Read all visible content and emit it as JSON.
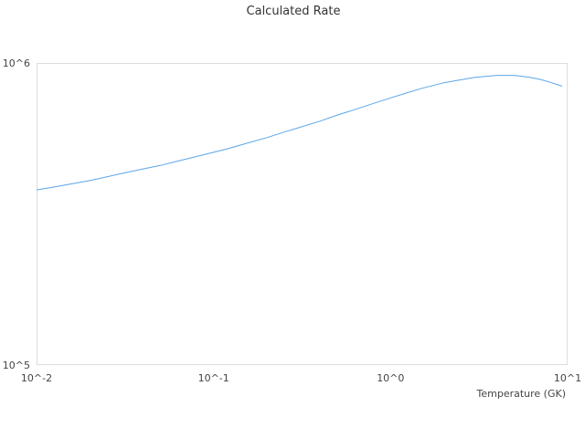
{
  "chart_data": {
    "type": "line",
    "title": "Calculated Rate",
    "xlabel": "Temperature (GK)",
    "ylabel": "",
    "xscale": "log",
    "yscale": "log",
    "xlim": [
      0.01,
      10
    ],
    "ylim": [
      100000,
      1000000
    ],
    "xticks": [
      {
        "value": 0.01,
        "label": "10^-2"
      },
      {
        "value": 0.1,
        "label": "10^-1"
      },
      {
        "value": 1,
        "label": "10^0"
      },
      {
        "value": 10,
        "label": "10^1"
      }
    ],
    "yticks": [
      {
        "value": 100000,
        "label": "10^5"
      },
      {
        "value": 1000000,
        "label": "10^6"
      }
    ],
    "grid": false,
    "series": [
      {
        "color": "#5aa5e8",
        "points": [
          {
            "x": 0.01,
            "y": 380000
          },
          {
            "x": 0.0119,
            "y": 386000
          },
          {
            "x": 0.015,
            "y": 396000
          },
          {
            "x": 0.02,
            "y": 408000
          },
          {
            "x": 0.025,
            "y": 420000
          },
          {
            "x": 0.03,
            "y": 430000
          },
          {
            "x": 0.04,
            "y": 446000
          },
          {
            "x": 0.05,
            "y": 458000
          },
          {
            "x": 0.06,
            "y": 470000
          },
          {
            "x": 0.08,
            "y": 490000
          },
          {
            "x": 0.1,
            "y": 506000
          },
          {
            "x": 0.12,
            "y": 520000
          },
          {
            "x": 0.15,
            "y": 540000
          },
          {
            "x": 0.2,
            "y": 566000
          },
          {
            "x": 0.25,
            "y": 590000
          },
          {
            "x": 0.3,
            "y": 610000
          },
          {
            "x": 0.4,
            "y": 642000
          },
          {
            "x": 0.5,
            "y": 672000
          },
          {
            "x": 0.6,
            "y": 695000
          },
          {
            "x": 0.8,
            "y": 735000
          },
          {
            "x": 1.0,
            "y": 766000
          },
          {
            "x": 1.2,
            "y": 792000
          },
          {
            "x": 1.5,
            "y": 824000
          },
          {
            "x": 2.0,
            "y": 860000
          },
          {
            "x": 2.5,
            "y": 880000
          },
          {
            "x": 3.0,
            "y": 896000
          },
          {
            "x": 4.0,
            "y": 910000
          },
          {
            "x": 5.0,
            "y": 910000
          },
          {
            "x": 6.0,
            "y": 898000
          },
          {
            "x": 7.0,
            "y": 882000
          },
          {
            "x": 8.0,
            "y": 862000
          },
          {
            "x": 9.3,
            "y": 838000
          }
        ]
      }
    ]
  }
}
